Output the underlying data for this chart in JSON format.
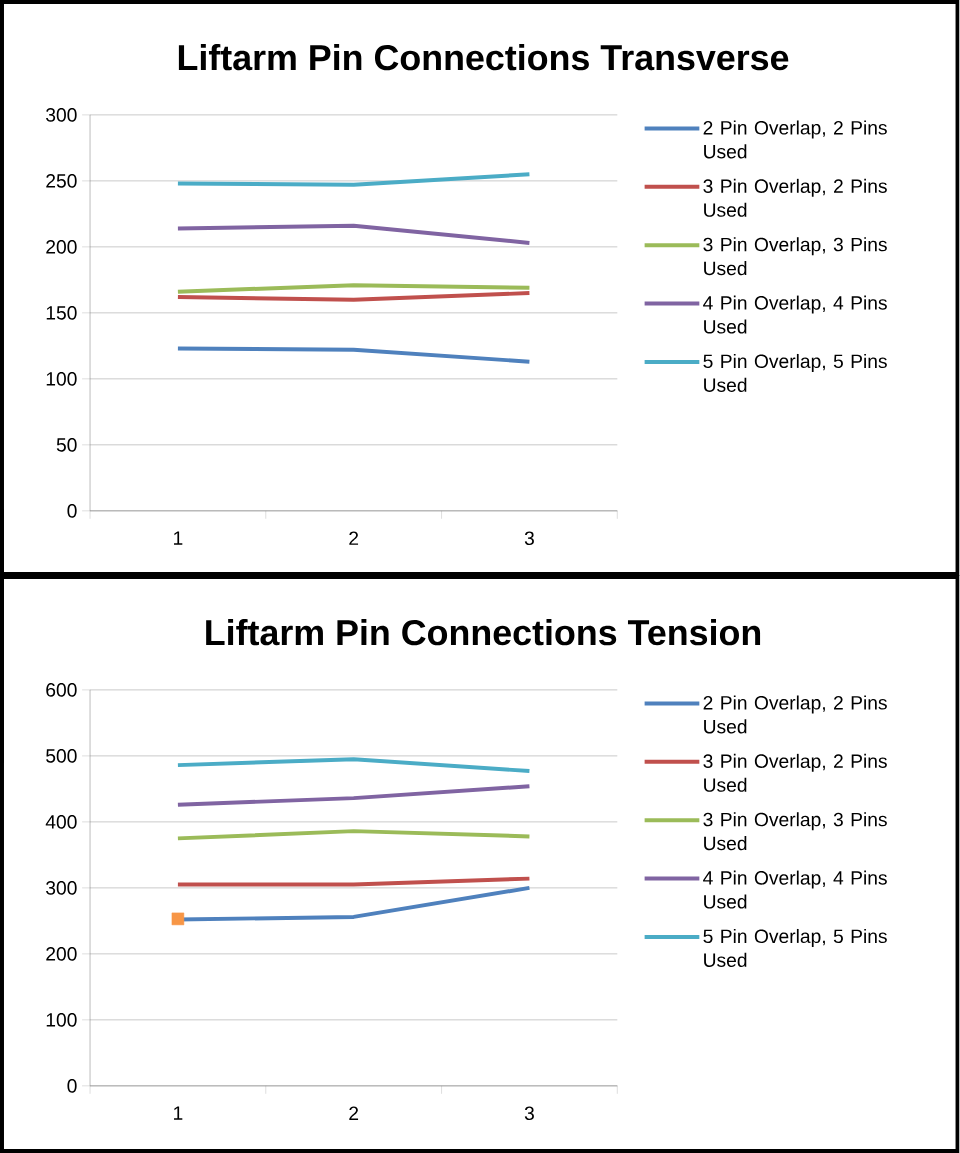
{
  "chart_data": [
    {
      "type": "line",
      "title": "Liftarm Pin Connections Transverse",
      "categories": [
        "1",
        "2",
        "3"
      ],
      "series": [
        {
          "name": "2 Pin Overlap, 2 Pins Used",
          "color": "#4f81bd",
          "values": [
            123,
            122,
            113
          ]
        },
        {
          "name": "3 Pin Overlap, 2 Pins Used",
          "color": "#c0504d",
          "values": [
            162,
            160,
            165
          ]
        },
        {
          "name": "3 Pin Overlap, 3 Pins Used",
          "color": "#9bbb59",
          "values": [
            166,
            171,
            169
          ]
        },
        {
          "name": "4 Pin Overlap, 4 Pins Used",
          "color": "#8064a2",
          "values": [
            214,
            216,
            203
          ]
        },
        {
          "name": "5 Pin Overlap, 5 Pins Used",
          "color": "#4bacc6",
          "values": [
            248,
            247,
            255
          ]
        }
      ],
      "ylim": [
        0,
        300
      ],
      "yticks": [
        0,
        50,
        100,
        150,
        200,
        250,
        300
      ],
      "grid": "y",
      "legend": "right"
    },
    {
      "type": "line",
      "title": "Liftarm Pin Connections Tension",
      "categories": [
        "1",
        "2",
        "3"
      ],
      "series": [
        {
          "name": "2 Pin Overlap, 2 Pins Used",
          "color": "#4f81bd",
          "values": [
            252,
            256,
            300
          ]
        },
        {
          "name": "3 Pin Overlap, 2 Pins Used",
          "color": "#c0504d",
          "values": [
            305,
            305,
            314
          ]
        },
        {
          "name": "3 Pin Overlap, 3 Pins Used",
          "color": "#9bbb59",
          "values": [
            375,
            386,
            378
          ]
        },
        {
          "name": "4 Pin Overlap, 4 Pins Used",
          "color": "#8064a2",
          "values": [
            426,
            436,
            454
          ]
        },
        {
          "name": "5 Pin Overlap, 5 Pins Used",
          "color": "#4bacc6",
          "values": [
            486,
            495,
            477
          ]
        },
        {
          "type": "scatter",
          "marker": "square",
          "color": "#f79646",
          "values": [
            253,
            null,
            null
          ]
        }
      ],
      "ylim": [
        0,
        600
      ],
      "yticks": [
        0,
        100,
        200,
        300,
        400,
        500,
        600
      ],
      "grid": "y",
      "legend": "right"
    }
  ]
}
